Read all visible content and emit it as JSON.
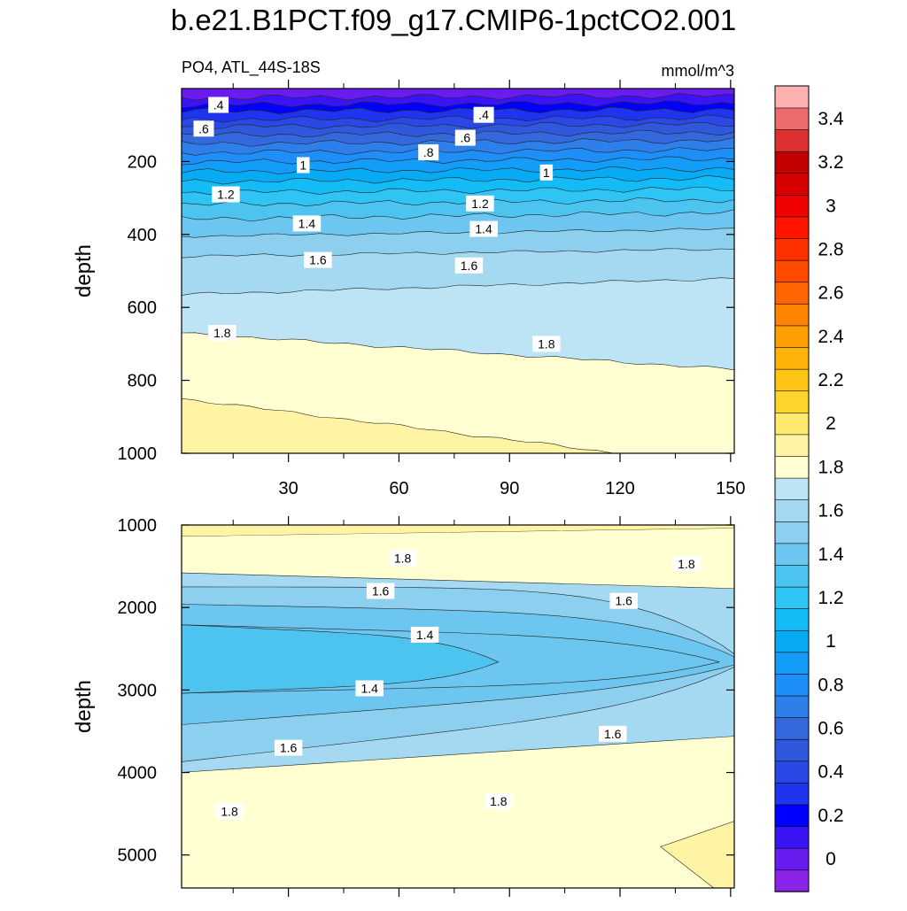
{
  "chart_data": {
    "type": "contour",
    "title": "b.e21.B1PCT.f09_g17.CMIP6-1pctCO2.001",
    "variable_label": "PO4, ATL_44S-18S",
    "units_label": "mmol/m^3",
    "x": {
      "ticks": [
        30,
        60,
        90,
        120,
        150
      ],
      "range": [
        1,
        151
      ]
    },
    "panels": [
      {
        "name": "upper",
        "ylabel": "depth",
        "yrange": [
          0,
          1000
        ],
        "yticks": [
          200,
          400,
          600,
          800,
          1000
        ],
        "contour_labels": [
          {
            "text": ".4",
            "x": 11,
            "y": 45
          },
          {
            "text": ".6",
            "x": 7,
            "y": 110
          },
          {
            "text": ".4",
            "x": 83,
            "y": 72
          },
          {
            "text": ".6",
            "x": 78,
            "y": 135
          },
          {
            "text": ".8",
            "x": 68,
            "y": 175
          },
          {
            "text": "1",
            "x": 34,
            "y": 210
          },
          {
            "text": "1",
            "x": 100,
            "y": 230
          },
          {
            "text": "1.2",
            "x": 13,
            "y": 290
          },
          {
            "text": "1.2",
            "x": 82,
            "y": 315
          },
          {
            "text": "1.4",
            "x": 35,
            "y": 370
          },
          {
            "text": "1.4",
            "x": 83,
            "y": 385
          },
          {
            "text": "1.6",
            "x": 38,
            "y": 470
          },
          {
            "text": "1.6",
            "x": 79,
            "y": 485
          },
          {
            "text": "1.8",
            "x": 12,
            "y": 670
          },
          {
            "text": "1.8",
            "x": 100,
            "y": 700
          }
        ]
      },
      {
        "name": "lower",
        "ylabel": "depth",
        "yrange": [
          1000,
          5400
        ],
        "yticks": [
          1000,
          2000,
          3000,
          4000,
          5000
        ],
        "contour_labels": [
          {
            "text": "1.8",
            "x": 61,
            "y": 1400
          },
          {
            "text": "1.8",
            "x": 138,
            "y": 1470
          },
          {
            "text": "1.6",
            "x": 55,
            "y": 1800
          },
          {
            "text": "1.6",
            "x": 121,
            "y": 1920
          },
          {
            "text": "1.4",
            "x": 67,
            "y": 2330
          },
          {
            "text": "1.4",
            "x": 52,
            "y": 2980
          },
          {
            "text": "1.6",
            "x": 118,
            "y": 3530
          },
          {
            "text": "1.6",
            "x": 30,
            "y": 3700
          },
          {
            "text": "1.8",
            "x": 14,
            "y": 4470
          },
          {
            "text": "1.8",
            "x": 87,
            "y": 4350
          }
        ]
      }
    ],
    "colorbar": {
      "labels": [
        "0",
        "0.2",
        "0.4",
        "0.6",
        "0.8",
        "1",
        "1.2",
        "1.4",
        "1.6",
        "1.8",
        "2",
        "2.2",
        "2.4",
        "2.6",
        "2.8",
        "3",
        "3.2",
        "3.4"
      ],
      "levels": [
        -0.1,
        0,
        0.1,
        0.2,
        0.3,
        0.4,
        0.5,
        0.6,
        0.7,
        0.8,
        0.9,
        1.0,
        1.1,
        1.2,
        1.3,
        1.4,
        1.5,
        1.6,
        1.7,
        1.8,
        1.9,
        2.0,
        2.1,
        2.2,
        2.3,
        2.4,
        2.5,
        2.6,
        2.7,
        2.8,
        2.9,
        3.0,
        3.1,
        3.2,
        3.3,
        3.4,
        3.5,
        3.6
      ],
      "colors": [
        "#8b24e8",
        "#6a1cf0",
        "#3a14f5",
        "#0000ff",
        "#1e34ee",
        "#2a48e6",
        "#3058dc",
        "#3468dd",
        "#2f7fea",
        "#1e8ef8",
        "#139cf8",
        "#06abf4",
        "#13bcf6",
        "#2ec5f5",
        "#4dc3f0",
        "#6cc6ef",
        "#8ccfee",
        "#a4d9f1",
        "#bce4f5",
        "#ffffd2",
        "#fff3a4",
        "#ffe96e",
        "#ffd42a",
        "#ffc514",
        "#ffb30a",
        "#ff9d04",
        "#ff8200",
        "#ff6400",
        "#ff4b00",
        "#ff3000",
        "#ff1500",
        "#f00000",
        "#d60000",
        "#c20000",
        "#dd3030",
        "#eb6a6a",
        "#ffb0b0"
      ]
    }
  }
}
